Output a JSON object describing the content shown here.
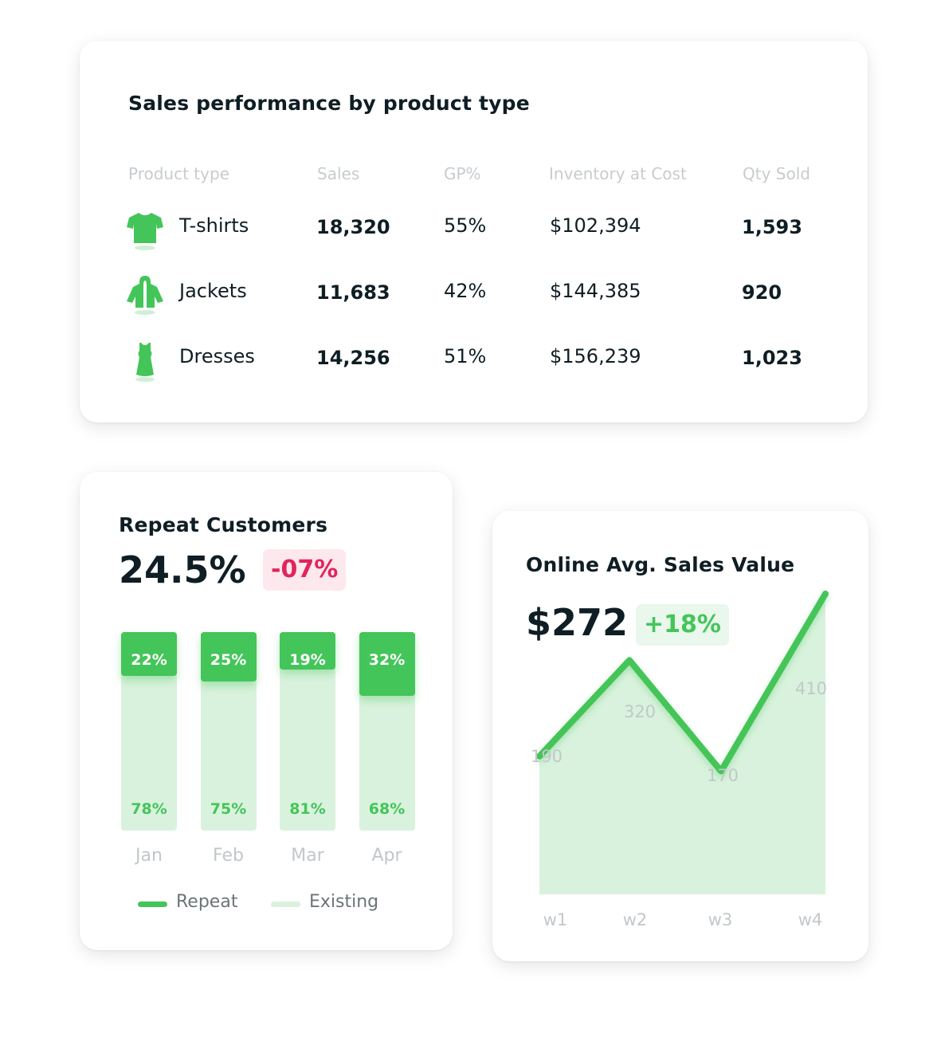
{
  "colors": {
    "green": "#44c559",
    "light_green": "#d9f2dd",
    "red": "#e0245e",
    "red_bg": "#fde8ee",
    "green_bg": "#e9f7ec"
  },
  "table_card": {
    "title": "Sales performance by product type",
    "headers": [
      "Product type",
      "Sales",
      "GP%",
      "Inventory at Cost",
      "Qty Sold"
    ],
    "rows": [
      {
        "icon": "tshirt-icon",
        "name": "T-shirts",
        "sales": "18,320",
        "gp": "55%",
        "inventory": "$102,394",
        "qty": "1,593"
      },
      {
        "icon": "jacket-icon",
        "name": "Jackets",
        "sales": "11,683",
        "gp": "42%",
        "inventory": "$144,385",
        "qty": "920"
      },
      {
        "icon": "dress-icon",
        "name": "Dresses",
        "sales": "14,256",
        "gp": "51%",
        "inventory": "$156,239",
        "qty": "1,023"
      }
    ]
  },
  "repeat_card": {
    "title": "Repeat Customers",
    "value": "24.5%",
    "change": "-07%",
    "legend": {
      "repeat": "Repeat",
      "existing": "Existing"
    }
  },
  "online_card": {
    "title": "Online Avg. Sales Value",
    "value": "$272",
    "change": "+18%"
  },
  "chart_data": [
    {
      "type": "bar",
      "stacked": true,
      "categories": [
        "Jan",
        "Feb",
        "Mar",
        "Apr"
      ],
      "series": [
        {
          "name": "Repeat",
          "values": [
            22,
            25,
            19,
            32
          ],
          "labels": [
            "22%",
            "25%",
            "19%",
            "32%"
          ]
        },
        {
          "name": "Existing",
          "values": [
            78,
            75,
            81,
            68
          ],
          "labels": [
            "78%",
            "75%",
            "81%",
            "68%"
          ]
        }
      ],
      "ylim": [
        0,
        100
      ]
    },
    {
      "type": "area",
      "x": [
        "w1",
        "w2",
        "w3",
        "w4"
      ],
      "values": [
        190,
        320,
        170,
        410
      ],
      "labels": [
        "190",
        "320",
        "170",
        "410"
      ],
      "ylim": [
        0,
        450
      ]
    }
  ]
}
